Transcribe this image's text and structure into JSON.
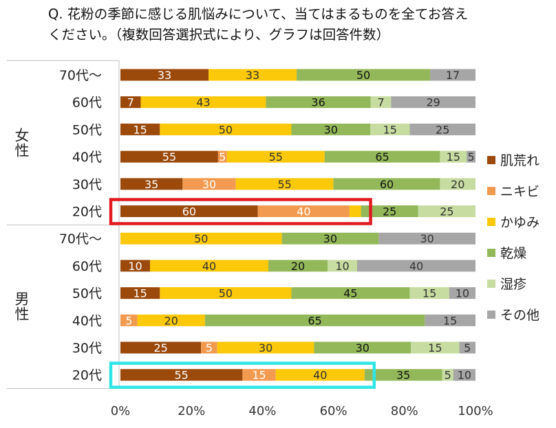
{
  "title": {
    "line1": "Q.  花粉の季節に感じる肌悩みについて、当てはまるものを全てお答え",
    "line2": "ください。（複数回答選択式により、グラフは回答件数）"
  },
  "chart_data": {
    "type": "bar",
    "stacked": "percent",
    "orientation": "horizontal",
    "groups": [
      "女性",
      "男性"
    ],
    "categories": [
      {
        "group": "女性",
        "label": "70代～"
      },
      {
        "group": "女性",
        "label": "60代"
      },
      {
        "group": "女性",
        "label": "50代"
      },
      {
        "group": "女性",
        "label": "40代"
      },
      {
        "group": "女性",
        "label": "30代"
      },
      {
        "group": "女性",
        "label": "20代"
      },
      {
        "group": "男性",
        "label": "70代～"
      },
      {
        "group": "男性",
        "label": "60代"
      },
      {
        "group": "男性",
        "label": "50代"
      },
      {
        "group": "男性",
        "label": "40代"
      },
      {
        "group": "男性",
        "label": "30代"
      },
      {
        "group": "男性",
        "label": "20代"
      }
    ],
    "series": [
      {
        "name": "肌荒れ",
        "color": "#9b4a0c",
        "label_color": "#ffffff",
        "values": [
          33,
          7,
          15,
          55,
          35,
          60,
          0,
          10,
          15,
          0,
          25,
          55
        ]
      },
      {
        "name": "ニキビ",
        "color": "#f29a50",
        "label_color": "#ffffff",
        "values": [
          0,
          0,
          0,
          5,
          30,
          40,
          0,
          0,
          0,
          5,
          5,
          15
        ]
      },
      {
        "name": "かゆみ",
        "color": "#fbc80a",
        "label_color": "#333333",
        "values": [
          33,
          43,
          50,
          55,
          55,
          5,
          50,
          40,
          50,
          20,
          30,
          40
        ]
      },
      {
        "name": "乾燥",
        "color": "#93b85a",
        "label_color": "#111111",
        "values": [
          50,
          36,
          30,
          65,
          60,
          25,
          30,
          20,
          45,
          65,
          30,
          35
        ]
      },
      {
        "name": "湿疹",
        "color": "#c7dca0",
        "label_color": "#333333",
        "values": [
          0,
          7,
          15,
          15,
          20,
          25,
          0,
          10,
          15,
          0,
          15,
          5
        ]
      },
      {
        "name": "その他",
        "color": "#a6a6a6",
        "label_color": "#333333",
        "values": [
          17,
          29,
          25,
          5,
          0,
          0,
          30,
          40,
          10,
          15,
          5,
          10
        ]
      }
    ],
    "hidden_labels": [
      [
        5,
        2
      ]
    ],
    "x_ticks": [
      "0%",
      "20%",
      "40%",
      "60%",
      "80%",
      "100%"
    ],
    "xlim": [
      0,
      1
    ],
    "legend_position": "right",
    "highlights": [
      {
        "row": 5,
        "through_series": 2,
        "color": "#e01b22"
      },
      {
        "row": 11,
        "through_series": 2,
        "color": "#2fe6e6"
      }
    ]
  }
}
